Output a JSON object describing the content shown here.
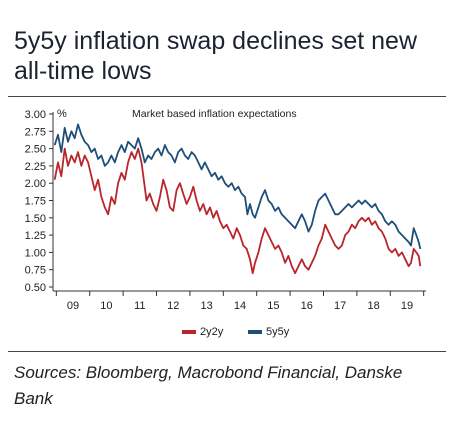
{
  "title": "5y5y inflation swap declines set new all-time lows",
  "sources": "Sources: Bloomberg, Macrobond Financial, Danske Bank",
  "chart_data": {
    "type": "line",
    "title": "",
    "subtitle": "Market based inflation expectations",
    "unit": "%",
    "xlabel": "",
    "ylabel": "%",
    "x_ticks": [
      "09",
      "10",
      "11",
      "12",
      "13",
      "14",
      "15",
      "16",
      "17",
      "18",
      "19"
    ],
    "y_ticks": [
      "3.00",
      "2.75",
      "2.50",
      "2.25",
      "2.00",
      "1.75",
      "1.50",
      "1.25",
      "1.00",
      "0.75",
      "0.50"
    ],
    "ylim": [
      0.5,
      3.0
    ],
    "xlim": [
      2008.9,
      2019.95
    ],
    "grid": false,
    "legend_position": "bottom-center",
    "series": [
      {
        "name": "2y2y",
        "color": "#b8262c",
        "points": [
          [
            2008.95,
            2.05
          ],
          [
            2009.05,
            2.3
          ],
          [
            2009.15,
            2.1
          ],
          [
            2009.25,
            2.5
          ],
          [
            2009.35,
            2.25
          ],
          [
            2009.45,
            2.4
          ],
          [
            2009.55,
            2.3
          ],
          [
            2009.65,
            2.45
          ],
          [
            2009.75,
            2.25
          ],
          [
            2009.85,
            2.4
          ],
          [
            2009.95,
            2.3
          ],
          [
            2010.05,
            2.1
          ],
          [
            2010.15,
            1.9
          ],
          [
            2010.25,
            2.05
          ],
          [
            2010.35,
            1.8
          ],
          [
            2010.45,
            1.65
          ],
          [
            2010.55,
            1.55
          ],
          [
            2010.65,
            1.8
          ],
          [
            2010.75,
            1.7
          ],
          [
            2010.85,
            2.0
          ],
          [
            2010.95,
            2.15
          ],
          [
            2011.05,
            2.05
          ],
          [
            2011.15,
            2.3
          ],
          [
            2011.25,
            2.45
          ],
          [
            2011.35,
            2.35
          ],
          [
            2011.45,
            2.5
          ],
          [
            2011.55,
            2.3
          ],
          [
            2011.62,
            2.05
          ],
          [
            2011.7,
            1.75
          ],
          [
            2011.8,
            1.85
          ],
          [
            2011.9,
            1.7
          ],
          [
            2012.0,
            1.6
          ],
          [
            2012.1,
            1.8
          ],
          [
            2012.2,
            2.05
          ],
          [
            2012.3,
            1.9
          ],
          [
            2012.4,
            1.65
          ],
          [
            2012.5,
            1.6
          ],
          [
            2012.6,
            1.9
          ],
          [
            2012.7,
            2.0
          ],
          [
            2012.8,
            1.85
          ],
          [
            2012.9,
            1.7
          ],
          [
            2013.0,
            1.8
          ],
          [
            2013.1,
            1.95
          ],
          [
            2013.2,
            1.75
          ],
          [
            2013.3,
            1.6
          ],
          [
            2013.4,
            1.7
          ],
          [
            2013.5,
            1.55
          ],
          [
            2013.6,
            1.65
          ],
          [
            2013.7,
            1.5
          ],
          [
            2013.8,
            1.6
          ],
          [
            2013.9,
            1.45
          ],
          [
            2014.0,
            1.35
          ],
          [
            2014.1,
            1.4
          ],
          [
            2014.2,
            1.3
          ],
          [
            2014.3,
            1.2
          ],
          [
            2014.4,
            1.35
          ],
          [
            2014.5,
            1.25
          ],
          [
            2014.6,
            1.1
          ],
          [
            2014.7,
            1.05
          ],
          [
            2014.8,
            0.9
          ],
          [
            2014.88,
            0.7
          ],
          [
            2014.95,
            0.85
          ],
          [
            2015.05,
            1.0
          ],
          [
            2015.15,
            1.2
          ],
          [
            2015.25,
            1.35
          ],
          [
            2015.35,
            1.25
          ],
          [
            2015.45,
            1.15
          ],
          [
            2015.55,
            1.05
          ],
          [
            2015.65,
            1.1
          ],
          [
            2015.75,
            1.0
          ],
          [
            2015.85,
            0.85
          ],
          [
            2015.95,
            0.95
          ],
          [
            2016.05,
            0.8
          ],
          [
            2016.15,
            0.7
          ],
          [
            2016.25,
            0.8
          ],
          [
            2016.35,
            0.9
          ],
          [
            2016.45,
            0.8
          ],
          [
            2016.55,
            0.75
          ],
          [
            2016.65,
            0.85
          ],
          [
            2016.75,
            0.95
          ],
          [
            2016.85,
            1.1
          ],
          [
            2016.95,
            1.2
          ],
          [
            2017.05,
            1.4
          ],
          [
            2017.15,
            1.3
          ],
          [
            2017.25,
            1.2
          ],
          [
            2017.35,
            1.1
          ],
          [
            2017.45,
            1.05
          ],
          [
            2017.55,
            1.1
          ],
          [
            2017.65,
            1.25
          ],
          [
            2017.75,
            1.3
          ],
          [
            2017.85,
            1.4
          ],
          [
            2017.95,
            1.35
          ],
          [
            2018.05,
            1.45
          ],
          [
            2018.15,
            1.5
          ],
          [
            2018.25,
            1.45
          ],
          [
            2018.35,
            1.5
          ],
          [
            2018.45,
            1.4
          ],
          [
            2018.55,
            1.45
          ],
          [
            2018.65,
            1.35
          ],
          [
            2018.75,
            1.3
          ],
          [
            2018.85,
            1.2
          ],
          [
            2018.95,
            1.05
          ],
          [
            2019.05,
            1.0
          ],
          [
            2019.15,
            1.05
          ],
          [
            2019.25,
            0.95
          ],
          [
            2019.35,
            1.0
          ],
          [
            2019.45,
            0.9
          ],
          [
            2019.55,
            0.8
          ],
          [
            2019.62,
            0.85
          ],
          [
            2019.7,
            1.05
          ],
          [
            2019.78,
            1.0
          ],
          [
            2019.85,
            0.95
          ],
          [
            2019.9,
            0.8
          ]
        ]
      },
      {
        "name": "5y5y",
        "color": "#1f4e79",
        "points": [
          [
            2008.95,
            2.55
          ],
          [
            2009.05,
            2.7
          ],
          [
            2009.15,
            2.45
          ],
          [
            2009.25,
            2.8
          ],
          [
            2009.35,
            2.6
          ],
          [
            2009.45,
            2.75
          ],
          [
            2009.55,
            2.65
          ],
          [
            2009.65,
            2.85
          ],
          [
            2009.75,
            2.7
          ],
          [
            2009.85,
            2.6
          ],
          [
            2009.95,
            2.55
          ],
          [
            2010.05,
            2.45
          ],
          [
            2010.15,
            2.5
          ],
          [
            2010.25,
            2.35
          ],
          [
            2010.35,
            2.4
          ],
          [
            2010.45,
            2.25
          ],
          [
            2010.55,
            2.3
          ],
          [
            2010.65,
            2.4
          ],
          [
            2010.75,
            2.3
          ],
          [
            2010.85,
            2.45
          ],
          [
            2010.95,
            2.55
          ],
          [
            2011.05,
            2.45
          ],
          [
            2011.15,
            2.6
          ],
          [
            2011.25,
            2.55
          ],
          [
            2011.35,
            2.5
          ],
          [
            2011.45,
            2.65
          ],
          [
            2011.55,
            2.5
          ],
          [
            2011.65,
            2.3
          ],
          [
            2011.75,
            2.4
          ],
          [
            2011.85,
            2.35
          ],
          [
            2011.95,
            2.45
          ],
          [
            2012.05,
            2.5
          ],
          [
            2012.15,
            2.4
          ],
          [
            2012.25,
            2.55
          ],
          [
            2012.35,
            2.45
          ],
          [
            2012.45,
            2.4
          ],
          [
            2012.55,
            2.3
          ],
          [
            2012.65,
            2.45
          ],
          [
            2012.75,
            2.5
          ],
          [
            2012.85,
            2.4
          ],
          [
            2012.95,
            2.35
          ],
          [
            2013.05,
            2.45
          ],
          [
            2013.15,
            2.4
          ],
          [
            2013.25,
            2.3
          ],
          [
            2013.35,
            2.2
          ],
          [
            2013.45,
            2.3
          ],
          [
            2013.55,
            2.2
          ],
          [
            2013.65,
            2.1
          ],
          [
            2013.75,
            2.15
          ],
          [
            2013.85,
            2.05
          ],
          [
            2013.95,
            2.1
          ],
          [
            2014.05,
            2.0
          ],
          [
            2014.15,
            1.95
          ],
          [
            2014.25,
            2.0
          ],
          [
            2014.35,
            1.9
          ],
          [
            2014.45,
            1.95
          ],
          [
            2014.55,
            1.85
          ],
          [
            2014.65,
            1.8
          ],
          [
            2014.72,
            1.55
          ],
          [
            2014.8,
            1.7
          ],
          [
            2014.88,
            1.55
          ],
          [
            2014.95,
            1.5
          ],
          [
            2015.05,
            1.65
          ],
          [
            2015.15,
            1.8
          ],
          [
            2015.25,
            1.9
          ],
          [
            2015.35,
            1.75
          ],
          [
            2015.45,
            1.7
          ],
          [
            2015.55,
            1.6
          ],
          [
            2015.65,
            1.65
          ],
          [
            2015.75,
            1.55
          ],
          [
            2015.85,
            1.5
          ],
          [
            2015.95,
            1.45
          ],
          [
            2016.05,
            1.4
          ],
          [
            2016.15,
            1.35
          ],
          [
            2016.25,
            1.45
          ],
          [
            2016.35,
            1.55
          ],
          [
            2016.45,
            1.45
          ],
          [
            2016.55,
            1.3
          ],
          [
            2016.65,
            1.4
          ],
          [
            2016.75,
            1.6
          ],
          [
            2016.85,
            1.75
          ],
          [
            2016.95,
            1.8
          ],
          [
            2017.05,
            1.85
          ],
          [
            2017.15,
            1.75
          ],
          [
            2017.25,
            1.65
          ],
          [
            2017.35,
            1.55
          ],
          [
            2017.45,
            1.55
          ],
          [
            2017.55,
            1.6
          ],
          [
            2017.65,
            1.65
          ],
          [
            2017.75,
            1.7
          ],
          [
            2017.85,
            1.65
          ],
          [
            2017.95,
            1.7
          ],
          [
            2018.05,
            1.75
          ],
          [
            2018.15,
            1.7
          ],
          [
            2018.25,
            1.75
          ],
          [
            2018.35,
            1.7
          ],
          [
            2018.45,
            1.65
          ],
          [
            2018.55,
            1.7
          ],
          [
            2018.65,
            1.6
          ],
          [
            2018.75,
            1.55
          ],
          [
            2018.85,
            1.45
          ],
          [
            2018.95,
            1.4
          ],
          [
            2019.05,
            1.45
          ],
          [
            2019.15,
            1.4
          ],
          [
            2019.25,
            1.3
          ],
          [
            2019.35,
            1.25
          ],
          [
            2019.45,
            1.2
          ],
          [
            2019.55,
            1.15
          ],
          [
            2019.62,
            1.1
          ],
          [
            2019.7,
            1.35
          ],
          [
            2019.78,
            1.25
          ],
          [
            2019.85,
            1.15
          ],
          [
            2019.9,
            1.05
          ]
        ]
      }
    ]
  }
}
